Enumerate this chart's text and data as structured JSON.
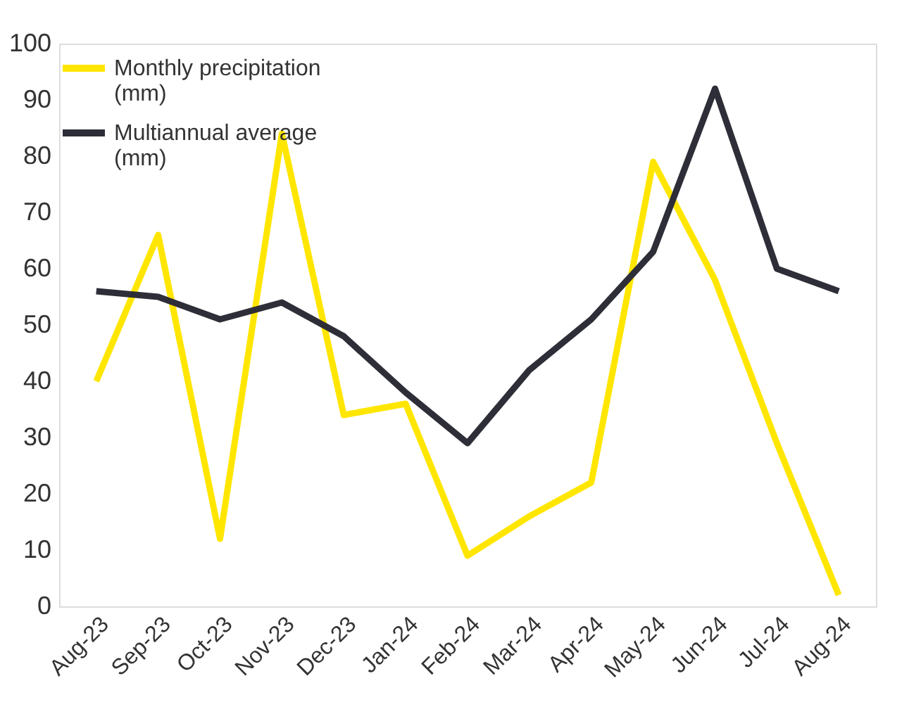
{
  "chart_data": {
    "type": "line",
    "categories": [
      "Aug-23",
      "Sep-23",
      "Oct-23",
      "Nov-23",
      "Dec-23",
      "Jan-24",
      "Feb-24",
      "Mar-24",
      "Apr-24",
      "May-24",
      "Jun-24",
      "Jul-24",
      "Aug-24"
    ],
    "series": [
      {
        "name": "Monthly precipitation (mm)",
        "color": "#ffe600",
        "values": [
          40,
          66,
          12,
          84,
          34,
          36,
          9,
          16,
          22,
          79,
          58,
          29,
          2
        ]
      },
      {
        "name": "Multiannual average (mm)",
        "color": "#2e2e38",
        "values": [
          56,
          55,
          51,
          54,
          48,
          38,
          29,
          42,
          51,
          63,
          92,
          60,
          56
        ]
      }
    ],
    "ylim": [
      0,
      100
    ],
    "yticks": [
      0,
      10,
      20,
      30,
      40,
      50,
      60,
      70,
      80,
      90,
      100
    ],
    "grid": false,
    "legend": "top left",
    "marker": "none",
    "line_style": "solid"
  }
}
